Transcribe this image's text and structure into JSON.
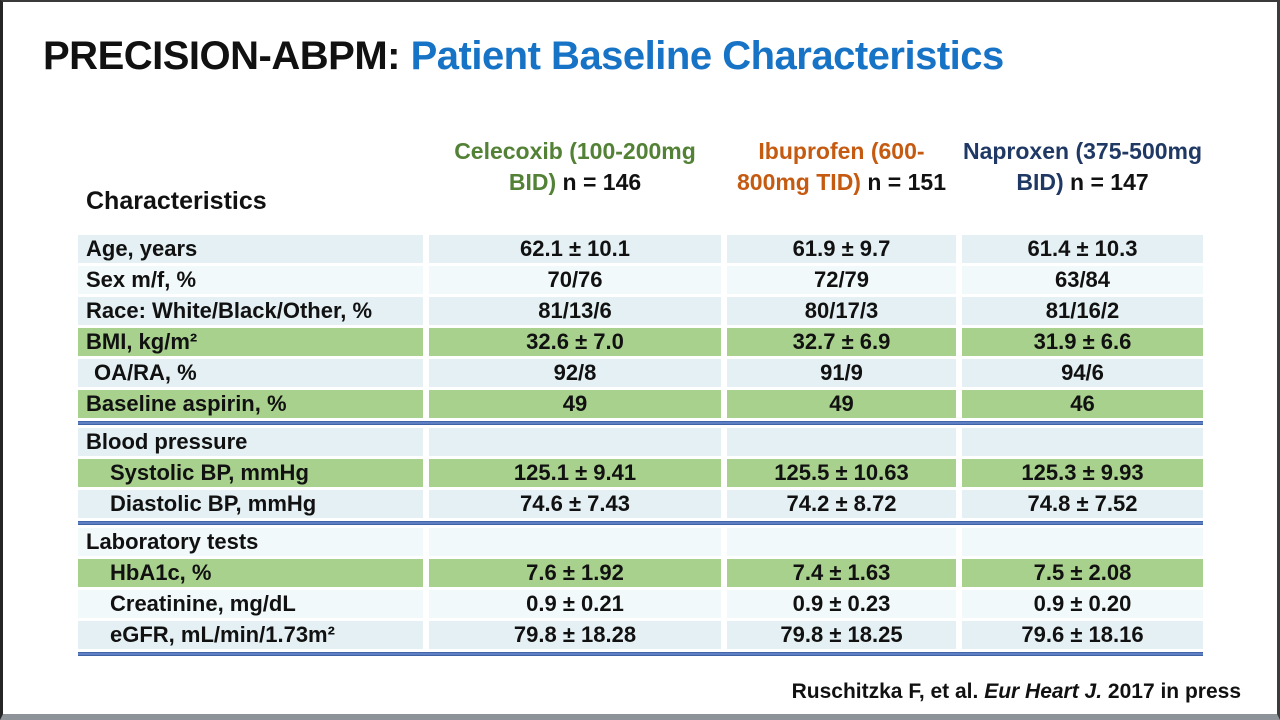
{
  "slide": {
    "title": {
      "black": "PRECISION-ABPM:",
      "blue": "Patient Baseline Characteristics"
    },
    "footer": {
      "pre": "Ruschitzka F, et al. ",
      "journal": "Eur Heart J.",
      "post": " 2017 in press"
    }
  },
  "colors": {
    "title_blue": "#1673C5",
    "celecoxib_green": "#538135",
    "ibuprofen_orange": "#C55A11",
    "naproxen_navy": "#1F3864",
    "row_green": "#A9D18E",
    "row_blue_light": "#E4F0F3",
    "row_blue_pale": "#F2F9FA",
    "divider_blue": "#3B67B7"
  },
  "table": {
    "characteristics_header": "Characteristics",
    "columns": [
      {
        "name": "Celecoxib",
        "dose": "(100-200mg  BID)",
        "n": "n  = 146"
      },
      {
        "name": "Ibuprofen",
        "dose": "(600-800mg TID)",
        "n": "n = 151"
      },
      {
        "name": "Naproxen",
        "dose": "(375-500mg BID)",
        "n": "n = 147"
      }
    ],
    "rows": [
      {
        "type": "data",
        "label": "Age, years",
        "indent": 0,
        "band": "a",
        "values": [
          "62.1 ± 10.1",
          "61.9 ± 9.7",
          "61.4 ± 10.3"
        ]
      },
      {
        "type": "data",
        "label": "Sex m/f, %",
        "indent": 0,
        "band": "b",
        "values": [
          "70/76",
          "72/79",
          "63/84"
        ]
      },
      {
        "type": "data",
        "label": "Race: White/Black/Other, %",
        "indent": 0,
        "band": "a",
        "values": [
          "81/13/6",
          "80/17/3",
          "81/16/2"
        ]
      },
      {
        "type": "data",
        "label": "BMI, kg/m²",
        "indent": 0,
        "band": "green",
        "values": [
          "32.6 ± 7.0",
          "32.7 ± 6.9",
          "31.9 ± 6.6"
        ]
      },
      {
        "type": "data",
        "label": "OA/RA, %",
        "indent": 1,
        "band": "a",
        "values": [
          "92/8",
          "91/9",
          "94/6"
        ]
      },
      {
        "type": "data",
        "label": "Baseline aspirin, %",
        "indent": 0,
        "band": "green",
        "values": [
          "49",
          "49",
          "46"
        ]
      },
      {
        "type": "separator"
      },
      {
        "type": "section",
        "label": "Blood pressure",
        "indent": 0,
        "band": "a",
        "values": [
          "",
          "",
          ""
        ]
      },
      {
        "type": "data",
        "label": "Systolic BP, mmHg",
        "indent": 2,
        "band": "green",
        "values": [
          "125.1 ± 9.41",
          "125.5 ± 10.63",
          "125.3 ± 9.93"
        ]
      },
      {
        "type": "data",
        "label": "Diastolic BP, mmHg",
        "indent": 2,
        "band": "a",
        "values": [
          "74.6 ± 7.43",
          "74.2 ± 8.72",
          "74.8 ± 7.52"
        ]
      },
      {
        "type": "separator"
      },
      {
        "type": "section",
        "label": "Laboratory tests",
        "indent": 0,
        "band": "b",
        "values": [
          "",
          "",
          ""
        ]
      },
      {
        "type": "data",
        "label": "HbA1c, %",
        "indent": 2,
        "band": "green",
        "values": [
          "7.6 ± 1.92",
          "7.4 ± 1.63",
          "7.5 ± 2.08"
        ]
      },
      {
        "type": "data",
        "label": "Creatinine, mg/dL",
        "indent": 2,
        "band": "b",
        "values": [
          "0.9 ± 0.21",
          "0.9 ± 0.23",
          "0.9 ± 0.20"
        ]
      },
      {
        "type": "data",
        "label": "eGFR, mL/min/1.73m²",
        "indent": 2,
        "band": "a",
        "values": [
          "79.8 ± 18.28",
          "79.8 ± 18.25",
          "79.6 ± 18.16"
        ]
      },
      {
        "type": "separator"
      }
    ]
  }
}
